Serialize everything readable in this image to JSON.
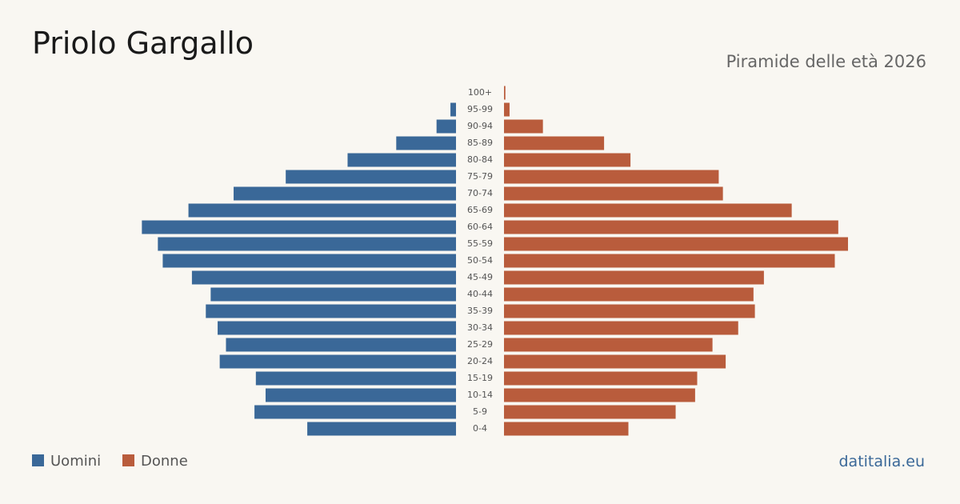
{
  "chart_data": {
    "type": "pyramid",
    "title": "Priolo Gargallo",
    "subtitle": "Piramide delle età 2026",
    "source": "datitalia.eu",
    "categories": [
      "100+",
      "95-99",
      "90-94",
      "85-89",
      "80-84",
      "75-79",
      "70-74",
      "65-69",
      "60-64",
      "55-59",
      "50-54",
      "45-49",
      "40-44",
      "35-39",
      "30-34",
      "25-29",
      "20-24",
      "15-19",
      "10-14",
      "5-9",
      "0-4"
    ],
    "series": [
      {
        "name": "Uomini",
        "color": "#3a6898",
        "values": [
          0,
          8,
          28,
          86,
          156,
          245,
          320,
          385,
          452,
          429,
          422,
          380,
          353,
          360,
          343,
          331,
          340,
          288,
          274,
          290,
          214
        ]
      },
      {
        "name": "Donne",
        "color": "#b95c3c",
        "values": [
          2,
          8,
          56,
          144,
          182,
          309,
          315,
          414,
          481,
          495,
          476,
          374,
          359,
          361,
          337,
          300,
          319,
          278,
          275,
          247,
          179
        ]
      }
    ]
  }
}
